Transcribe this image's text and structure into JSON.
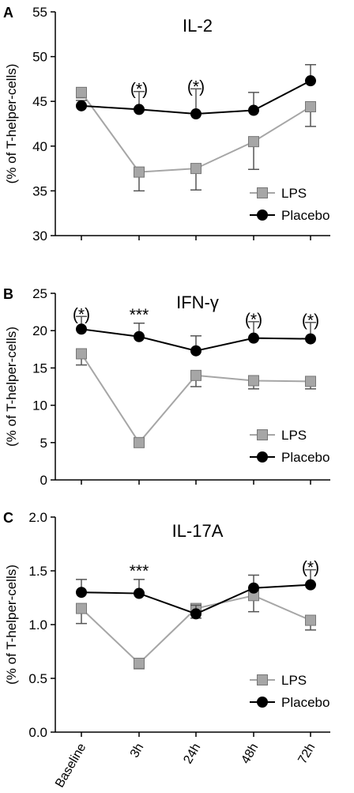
{
  "chart_data": [
    {
      "panel": "A",
      "type": "line",
      "title": "IL-2",
      "ylabel": "(% of T-helper-cells)",
      "ylim": [
        30,
        55
      ],
      "yticks": [
        "30",
        "35",
        "40",
        "45",
        "50",
        "55"
      ],
      "categories": [
        "Baseline",
        "3h",
        "24h",
        "48h",
        "72h"
      ],
      "legend": "right, lower half",
      "series": [
        {
          "name": "LPS",
          "color": "#a6a6a6",
          "marker": "square",
          "values": [
            46.0,
            37.1,
            37.5,
            40.5,
            44.4
          ],
          "err": [
            0.6,
            2.1,
            2.4,
            3.1,
            2.2
          ],
          "err_dir": "down"
        },
        {
          "name": "Placebo",
          "color": "#000000",
          "marker": "circle",
          "values": [
            44.5,
            44.1,
            43.6,
            44.0,
            47.3
          ],
          "err": [
            0.6,
            2.0,
            2.8,
            2.0,
            1.8
          ],
          "err_dir": "up"
        }
      ],
      "annotations": [
        {
          "category": "3h",
          "text": "(*)"
        },
        {
          "category": "24h",
          "text": "(*)"
        }
      ]
    },
    {
      "panel": "B",
      "type": "line",
      "title": "IFN-γ",
      "ylabel": "(% of T-helper-cells)",
      "ylim": [
        0,
        25
      ],
      "yticks": [
        "0",
        "5",
        "10",
        "15",
        "20",
        "25"
      ],
      "categories": [
        "Baseline",
        "3h",
        "24h",
        "48h",
        "72h"
      ],
      "legend": "right, lower half",
      "series": [
        {
          "name": "LPS",
          "color": "#a6a6a6",
          "marker": "square",
          "values": [
            16.9,
            5.0,
            14.0,
            13.3,
            13.2
          ],
          "err": [
            1.5,
            0.2,
            1.5,
            1.1,
            1.0
          ],
          "err_dir": "down"
        },
        {
          "name": "Placebo",
          "color": "#000000",
          "marker": "circle",
          "values": [
            20.2,
            19.2,
            17.3,
            19.0,
            18.9
          ],
          "err": [
            1.7,
            1.8,
            2.0,
            2.2,
            2.2
          ],
          "err_dir": "up"
        }
      ],
      "annotations": [
        {
          "category": "Baseline",
          "text": "(*)"
        },
        {
          "category": "3h",
          "text": "***"
        },
        {
          "category": "48h",
          "text": "(*)"
        },
        {
          "category": "72h",
          "text": "(*)"
        }
      ]
    },
    {
      "panel": "C",
      "type": "line",
      "title": "IL-17A",
      "ylabel": "(% of T-helper-cells)",
      "ylim": [
        0,
        2
      ],
      "yticks": [
        "0.0",
        "0.5",
        "1.0",
        "1.5",
        "2.0"
      ],
      "categories": [
        "Baseline",
        "3h",
        "24h",
        "48h",
        "72h"
      ],
      "legend": "right, lower half",
      "series": [
        {
          "name": "LPS",
          "color": "#a6a6a6",
          "marker": "square",
          "values": [
            1.15,
            0.64,
            1.15,
            1.27,
            1.04
          ],
          "err": [
            0.14,
            0.05,
            0.09,
            0.15,
            0.09
          ],
          "err_dir": "down"
        },
        {
          "name": "Placebo",
          "color": "#000000",
          "marker": "circle",
          "values": [
            1.3,
            1.29,
            1.1,
            1.34,
            1.37
          ],
          "err": [
            0.12,
            0.13,
            0.08,
            0.12,
            0.14
          ],
          "err_dir": "up"
        }
      ],
      "annotations": [
        {
          "category": "3h",
          "text": "***"
        },
        {
          "category": "72h",
          "text": "(*)"
        }
      ]
    }
  ]
}
